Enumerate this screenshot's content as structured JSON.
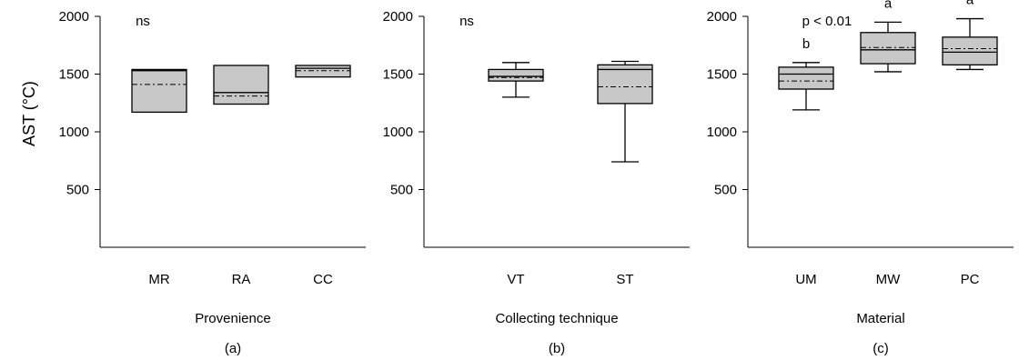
{
  "colors": {
    "box_fill": "#c8c8c8",
    "stroke": "#000000"
  },
  "shared_ylabel": "AST (°C)",
  "chart_data": [
    {
      "type": "box",
      "xlabel": "Provenience",
      "panel_label": "(a)",
      "annotation": "ns",
      "ylim": [
        0,
        2000
      ],
      "yticks": [
        500,
        1000,
        1500,
        2000
      ],
      "categories": [
        "MR",
        "RA",
        "CC"
      ],
      "boxes": [
        {
          "q1": 1170,
          "median": 1530,
          "mean": 1410,
          "q3": 1540,
          "whisker_low": 1170,
          "whisker_high": 1540
        },
        {
          "q1": 1240,
          "median": 1340,
          "mean": 1310,
          "q3": 1575,
          "whisker_low": 1240,
          "whisker_high": 1575
        },
        {
          "q1": 1475,
          "median": 1550,
          "mean": 1530,
          "q3": 1575,
          "whisker_low": 1475,
          "whisker_high": 1575
        }
      ],
      "group_labels": [
        "",
        "",
        ""
      ]
    },
    {
      "type": "box",
      "xlabel": "Collecting technique",
      "panel_label": "(b)",
      "annotation": "ns",
      "ylim": [
        0,
        2000
      ],
      "yticks": [
        500,
        1000,
        1500,
        2000
      ],
      "categories": [
        "VT",
        "ST"
      ],
      "boxes": [
        {
          "q1": 1440,
          "median": 1480,
          "mean": 1470,
          "q3": 1540,
          "whisker_low": 1300,
          "whisker_high": 1600
        },
        {
          "q1": 1245,
          "median": 1540,
          "mean": 1390,
          "q3": 1580,
          "whisker_low": 740,
          "whisker_high": 1610
        }
      ],
      "group_labels": [
        "",
        ""
      ]
    },
    {
      "type": "box",
      "xlabel": "Material",
      "panel_label": "(c)",
      "annotation": "p < 0.01",
      "ylim": [
        0,
        2000
      ],
      "yticks": [
        500,
        1000,
        1500,
        2000
      ],
      "categories": [
        "UM",
        "MW",
        "PC"
      ],
      "boxes": [
        {
          "q1": 1370,
          "median": 1500,
          "mean": 1440,
          "q3": 1560,
          "whisker_low": 1190,
          "whisker_high": 1600
        },
        {
          "q1": 1590,
          "median": 1710,
          "mean": 1730,
          "q3": 1860,
          "whisker_low": 1520,
          "whisker_high": 1950
        },
        {
          "q1": 1580,
          "median": 1690,
          "mean": 1720,
          "q3": 1820,
          "whisker_low": 1540,
          "whisker_high": 1980
        }
      ],
      "group_labels": [
        "b",
        "a",
        "a"
      ]
    }
  ]
}
